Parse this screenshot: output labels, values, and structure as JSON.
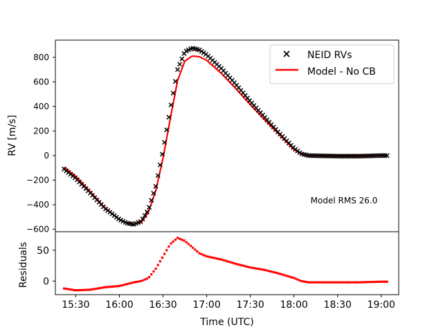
{
  "chart_data": [
    {
      "type": "scatter",
      "panel": "main",
      "ylabel": "RV [m/s]",
      "ylim": [
        -620,
        940
      ],
      "yticks": [
        -600,
        -400,
        -200,
        0,
        200,
        400,
        600,
        800
      ],
      "ytick_labels": [
        "−600",
        "−400",
        "−200",
        "0",
        "200",
        "400",
        "600",
        "800"
      ],
      "legend_position": "top-right",
      "annotation": "Model RMS 26.0",
      "series": [
        {
          "name": "NEID RVs",
          "marker": "x",
          "color": "#000000",
          "points": [
            [
              "15:22",
              -110
            ],
            [
              "15:30",
              -185
            ],
            [
              "15:40",
              -305
            ],
            [
              "15:50",
              -430
            ],
            [
              "16:00",
              -520
            ],
            [
              "16:05",
              -550
            ],
            [
              "16:10",
              -560
            ],
            [
              "16:15",
              -535
            ],
            [
              "16:20",
              -440
            ],
            [
              "16:25",
              -250
            ],
            [
              "16:30",
              40
            ],
            [
              "16:35",
              380
            ],
            [
              "16:40",
              700
            ],
            [
              "16:45",
              845
            ],
            [
              "16:50",
              875
            ],
            [
              "16:55",
              860
            ],
            [
              "17:00",
              820
            ],
            [
              "17:10",
              710
            ],
            [
              "17:20",
              580
            ],
            [
              "17:30",
              440
            ],
            [
              "17:40",
              310
            ],
            [
              "17:50",
              180
            ],
            [
              "18:00",
              60
            ],
            [
              "18:05",
              15
            ],
            [
              "18:10",
              0
            ],
            [
              "18:30",
              -5
            ],
            [
              "18:45",
              -5
            ],
            [
              "19:00",
              0
            ],
            [
              "19:04",
              0
            ]
          ]
        },
        {
          "name": "Model - No CB",
          "line": true,
          "color": "#ff0000",
          "points": [
            [
              "15:22",
              -95
            ],
            [
              "15:30",
              -170
            ],
            [
              "15:40",
              -295
            ],
            [
              "15:50",
              -425
            ],
            [
              "16:00",
              -520
            ],
            [
              "16:05",
              -550
            ],
            [
              "16:10",
              -558
            ],
            [
              "16:15",
              -545
            ],
            [
              "16:20",
              -460
            ],
            [
              "16:25",
              -285
            ],
            [
              "16:30",
              -20
            ],
            [
              "16:35",
              300
            ],
            [
              "16:40",
              610
            ],
            [
              "16:45",
              770
            ],
            [
              "16:50",
              810
            ],
            [
              "16:55",
              805
            ],
            [
              "17:00",
              775
            ],
            [
              "17:10",
              670
            ],
            [
              "17:20",
              545
            ],
            [
              "17:30",
              415
            ],
            [
              "17:40",
              290
            ],
            [
              "17:50",
              170
            ],
            [
              "18:00",
              50
            ],
            [
              "18:05",
              10
            ],
            [
              "18:10",
              0
            ],
            [
              "18:30",
              0
            ],
            [
              "18:45",
              0
            ],
            [
              "19:00",
              0
            ],
            [
              "19:04",
              0
            ]
          ]
        }
      ]
    },
    {
      "type": "scatter",
      "panel": "residuals",
      "ylabel": "Residuals",
      "xlabel": "Time (UTC)",
      "ylim": [
        -22,
        80
      ],
      "yticks": [
        0,
        50
      ],
      "xlim": [
        "15:16",
        "19:12"
      ],
      "xticks": [
        "15:30",
        "16:00",
        "16:30",
        "17:00",
        "17:30",
        "18:00",
        "18:30",
        "19:00"
      ],
      "series": [
        {
          "name": "Residuals",
          "marker": "square",
          "color": "#ff0000",
          "points": [
            [
              "15:22",
              -12
            ],
            [
              "15:30",
              -15
            ],
            [
              "15:40",
              -14
            ],
            [
              "15:50",
              -10
            ],
            [
              "16:00",
              -8
            ],
            [
              "16:05",
              -5
            ],
            [
              "16:10",
              -2
            ],
            [
              "16:15",
              0
            ],
            [
              "16:20",
              5
            ],
            [
              "16:25",
              20
            ],
            [
              "16:30",
              40
            ],
            [
              "16:35",
              60
            ],
            [
              "16:40",
              70
            ],
            [
              "16:45",
              65
            ],
            [
              "16:50",
              55
            ],
            [
              "16:55",
              45
            ],
            [
              "17:00",
              40
            ],
            [
              "17:10",
              35
            ],
            [
              "17:20",
              28
            ],
            [
              "17:30",
              22
            ],
            [
              "17:40",
              18
            ],
            [
              "17:50",
              12
            ],
            [
              "18:00",
              5
            ],
            [
              "18:05",
              0
            ],
            [
              "18:10",
              -2
            ],
            [
              "18:30",
              -2
            ],
            [
              "18:45",
              -2
            ],
            [
              "19:00",
              -1
            ],
            [
              "19:04",
              -1
            ]
          ]
        }
      ]
    }
  ]
}
